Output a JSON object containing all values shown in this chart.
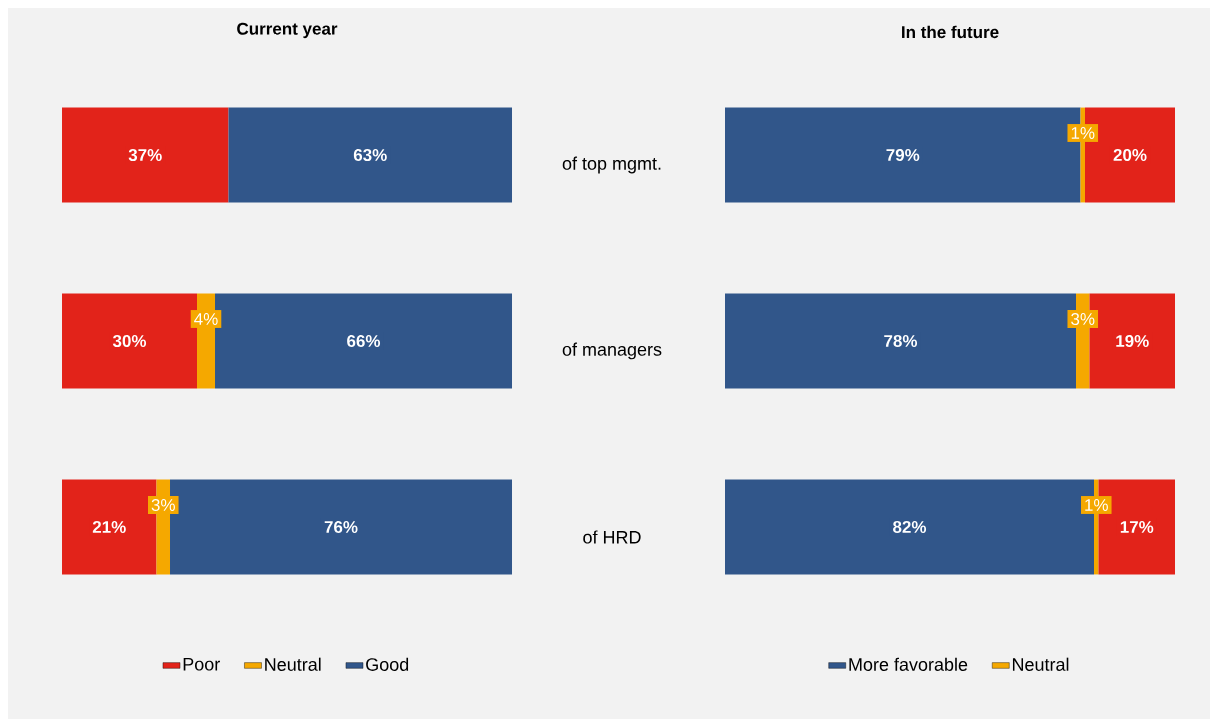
{
  "chart_data": [
    {
      "type": "bar",
      "orientation": "horizontal",
      "stacked": true,
      "title": "Current year",
      "categories": [
        "of top mgmt.",
        "of managers",
        "of HRD"
      ],
      "xlim": [
        0,
        100
      ],
      "tick_labels": "y",
      "legend": "bottom",
      "series": [
        {
          "name": "Poor",
          "color": "#e2231a",
          "values": [
            37,
            30,
            21
          ],
          "value_labels": [
            "37%",
            "30%",
            "21%"
          ]
        },
        {
          "name": "Neutral",
          "color": "#f5a800",
          "values": [
            null,
            4,
            3
          ],
          "value_labels": [
            null,
            "4%",
            "3%"
          ]
        },
        {
          "name": "Good",
          "color": "#31568a",
          "values": [
            63,
            66,
            76
          ],
          "value_labels": [
            "63%",
            "66%",
            "76%"
          ]
        }
      ]
    },
    {
      "type": "bar",
      "orientation": "horizontal",
      "stacked": true,
      "title": "In the future",
      "categories": [
        null,
        null,
        null
      ],
      "xlim": [
        0,
        100
      ],
      "tick_labels": false,
      "legend": "bottom",
      "series": [
        {
          "name": "More favorable",
          "color": "#31568a",
          "values": [
            79,
            78,
            82
          ],
          "value_labels": [
            "79%",
            "78%",
            "82%"
          ]
        },
        {
          "name": "Neutral",
          "color": "#f5a800",
          "values": [
            1,
            3,
            1
          ],
          "value_labels": [
            "1%",
            "3%",
            "1%"
          ]
        },
        {
          "color": "#e2231a",
          "values": [
            20,
            19,
            17
          ],
          "value_labels": [
            "20%",
            "19%",
            "17%"
          ]
        }
      ]
    }
  ]
}
